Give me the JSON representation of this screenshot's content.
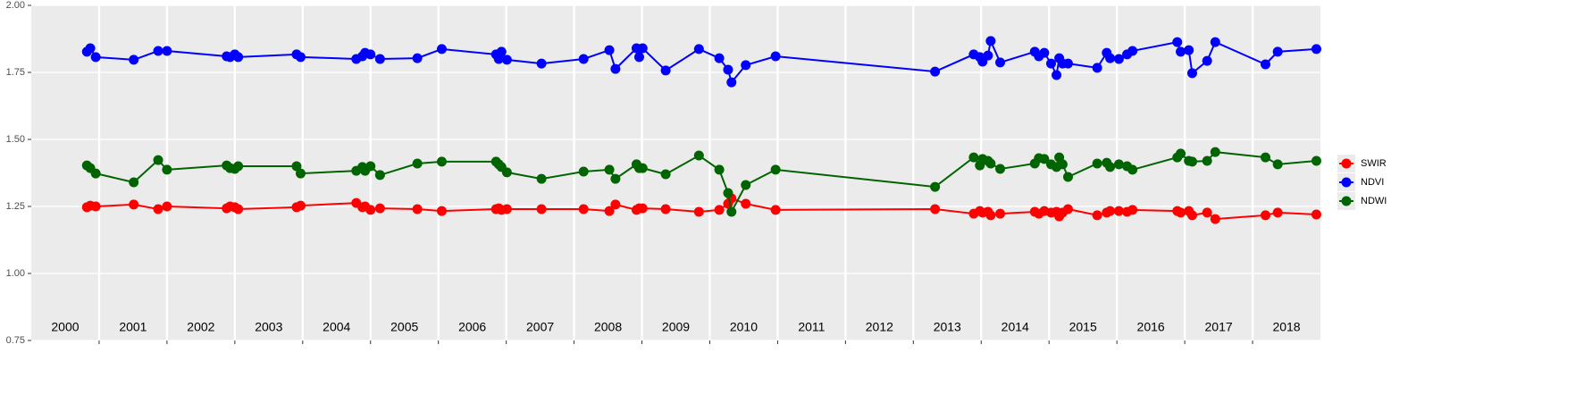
{
  "chart_data": {
    "type": "line",
    "x": [
      2000.82,
      2000.87,
      2000.95,
      2001.51,
      2001.87,
      2002.0,
      2002.88,
      2002.93,
      2003.0,
      2003.05,
      2003.91,
      2003.97,
      2004.79,
      2004.88,
      2004.92,
      2005.0,
      2005.14,
      2005.69,
      2006.05,
      2006.85,
      2006.89,
      2006.93,
      2007.01,
      2007.52,
      2008.14,
      2008.52,
      2008.61,
      2008.92,
      2008.96,
      2009.01,
      2009.35,
      2009.84,
      2010.14,
      2010.27,
      2010.32,
      2010.53,
      2010.97,
      2013.32,
      2013.89,
      2013.98,
      2014.02,
      2014.1,
      2014.14,
      2014.28,
      2014.79,
      2014.85,
      2014.93,
      2015.03,
      2015.11,
      2015.15,
      2015.2,
      2015.28,
      2015.71,
      2015.85,
      2015.9,
      2016.03,
      2016.15,
      2016.23,
      2016.89,
      2016.94,
      2017.06,
      2017.11,
      2017.33,
      2017.45,
      2018.19,
      2018.37,
      2018.94
    ],
    "series": [
      {
        "name": "SWIR",
        "color": "#ff0000",
        "values": [
          1.247,
          1.253,
          1.25,
          1.257,
          1.24,
          1.25,
          1.243,
          1.25,
          1.247,
          1.24,
          1.247,
          1.253,
          1.263,
          1.247,
          1.25,
          1.237,
          1.243,
          1.24,
          1.233,
          1.24,
          1.243,
          1.237,
          1.24,
          1.24,
          1.24,
          1.233,
          1.257,
          1.237,
          1.243,
          1.243,
          1.24,
          1.23,
          1.237,
          1.26,
          1.28,
          1.26,
          1.237,
          1.24,
          1.223,
          1.233,
          1.227,
          1.23,
          1.217,
          1.223,
          1.23,
          1.223,
          1.233,
          1.227,
          1.23,
          1.213,
          1.227,
          1.24,
          1.217,
          1.227,
          1.233,
          1.233,
          1.23,
          1.237,
          1.233,
          1.227,
          1.233,
          1.217,
          1.227,
          1.203,
          1.217,
          1.227,
          1.22
        ]
      },
      {
        "name": "NDVI",
        "color": "#0000ff",
        "values": [
          1.827,
          1.84,
          1.807,
          1.797,
          1.83,
          1.83,
          1.81,
          1.807,
          1.817,
          1.807,
          1.817,
          1.807,
          1.8,
          1.81,
          1.823,
          1.817,
          1.8,
          1.803,
          1.837,
          1.817,
          1.8,
          1.827,
          1.797,
          1.783,
          1.8,
          1.833,
          1.763,
          1.84,
          1.807,
          1.84,
          1.757,
          1.837,
          1.803,
          1.76,
          1.713,
          1.777,
          1.81,
          1.753,
          1.817,
          1.807,
          1.79,
          1.813,
          1.867,
          1.787,
          1.827,
          1.81,
          1.823,
          1.783,
          1.74,
          1.803,
          1.783,
          1.783,
          1.767,
          1.823,
          1.803,
          1.8,
          1.817,
          1.83,
          1.863,
          1.827,
          1.833,
          1.747,
          1.793,
          1.863,
          1.78,
          1.827,
          1.837
        ]
      },
      {
        "name": "NDWI",
        "color": "#006400",
        "values": [
          1.403,
          1.393,
          1.373,
          1.34,
          1.423,
          1.387,
          1.403,
          1.393,
          1.39,
          1.4,
          1.4,
          1.373,
          1.383,
          1.397,
          1.383,
          1.4,
          1.367,
          1.41,
          1.417,
          1.417,
          1.407,
          1.397,
          1.377,
          1.353,
          1.38,
          1.387,
          1.353,
          1.407,
          1.393,
          1.393,
          1.37,
          1.44,
          1.387,
          1.3,
          1.23,
          1.33,
          1.387,
          1.323,
          1.433,
          1.403,
          1.427,
          1.42,
          1.41,
          1.39,
          1.41,
          1.43,
          1.427,
          1.407,
          1.397,
          1.433,
          1.407,
          1.36,
          1.41,
          1.413,
          1.397,
          1.407,
          1.4,
          1.387,
          1.433,
          1.447,
          1.42,
          1.417,
          1.42,
          1.453,
          1.433,
          1.407,
          1.42
        ]
      }
    ],
    "xlim": [
      2000,
      2019
    ],
    "xticks": [
      {
        "value": 2000.5,
        "label": "2000"
      },
      {
        "value": 2001.5,
        "label": "2001"
      },
      {
        "value": 2002.5,
        "label": "2002"
      },
      {
        "value": 2003.5,
        "label": "2003"
      },
      {
        "value": 2004.5,
        "label": "2004"
      },
      {
        "value": 2005.5,
        "label": "2005"
      },
      {
        "value": 2006.5,
        "label": "2006"
      },
      {
        "value": 2007.5,
        "label": "2007"
      },
      {
        "value": 2008.5,
        "label": "2008"
      },
      {
        "value": 2009.5,
        "label": "2009"
      },
      {
        "value": 2010.5,
        "label": "2010"
      },
      {
        "value": 2011.5,
        "label": "2011"
      },
      {
        "value": 2012.5,
        "label": "2012"
      },
      {
        "value": 2013.5,
        "label": "2013"
      },
      {
        "value": 2014.5,
        "label": "2014"
      },
      {
        "value": 2015.5,
        "label": "2015"
      },
      {
        "value": 2016.5,
        "label": "2016"
      },
      {
        "value": 2017.5,
        "label": "2017"
      },
      {
        "value": 2018.5,
        "label": "2018"
      }
    ],
    "ylim": [
      0.75,
      2.0
    ],
    "yticks": [
      0.75,
      {
        "value": 1.0,
        "label": "1.00"
      },
      1.25,
      {
        "value": 1.5,
        "label": "1.50"
      },
      1.75,
      {
        "value": 2.0,
        "label": "2.00"
      }
    ],
    "grid": true,
    "legend": "right"
  }
}
